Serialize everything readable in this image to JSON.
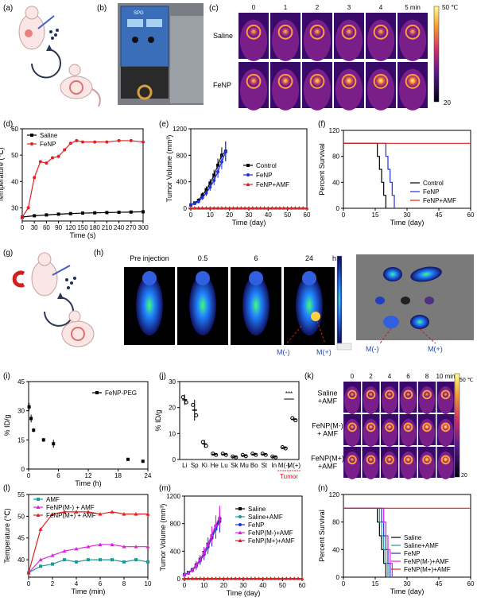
{
  "panel_labels": {
    "a": "(a)",
    "b": "(b)",
    "c": "(c)",
    "d": "(d)",
    "e": "(e)",
    "f": "(f)",
    "g": "(g)",
    "h": "(h)",
    "i": "(i)",
    "j": "(j)",
    "k": "(k)",
    "l": "(l)",
    "m": "(m)",
    "n": "(n)"
  },
  "colors": {
    "black": "#000000",
    "red": "#e02020",
    "blue": "#2030e0",
    "teal": "#1a9a9a",
    "magenta": "#e020e0",
    "green": "#30c030"
  },
  "panel_b": {
    "device_label": "SPG"
  },
  "panel_c": {
    "times": [
      "0",
      "1",
      "2",
      "3",
      "4",
      "5 min"
    ],
    "rows": [
      "Saline",
      "FeNP"
    ],
    "scale_max": "50 ℃",
    "scale_min": "20"
  },
  "panel_h": {
    "times": [
      "Pre injection",
      "0.5",
      "6",
      "24"
    ],
    "unit": "h",
    "marker_left": "M(-)",
    "marker_right": "M(+)"
  },
  "panel_k": {
    "times": [
      "0",
      "2",
      "4",
      "6",
      "8",
      "10 min"
    ],
    "rows": [
      "Saline\n+AMF",
      "FeNP(M-)\n+ AMF",
      "FeNP(M+)\n+AMF"
    ],
    "scale_max": "50 ℃",
    "scale_min": "20"
  },
  "chart_data": [
    {
      "id": "d",
      "type": "line",
      "xlabel": "Time (s)",
      "ylabel": "Temperature (℃)",
      "xlim": [
        0,
        300
      ],
      "ylim": [
        25,
        60
      ],
      "xticks": [
        0,
        30,
        60,
        90,
        120,
        150,
        180,
        210,
        240,
        270,
        300
      ],
      "yticks": [
        30,
        40,
        50,
        60
      ],
      "series": [
        {
          "name": "Saline",
          "color": "#000000",
          "marker": "square",
          "x": [
            0,
            30,
            60,
            90,
            120,
            150,
            180,
            210,
            240,
            270,
            300
          ],
          "y": [
            26.5,
            27,
            27.3,
            27.6,
            27.8,
            28,
            28.1,
            28.2,
            28.3,
            28.4,
            28.5
          ]
        },
        {
          "name": "FeNP",
          "color": "#e02020",
          "marker": "circle",
          "x": [
            0,
            15,
            30,
            45,
            60,
            75,
            90,
            105,
            120,
            135,
            150,
            180,
            210,
            240,
            270,
            300
          ],
          "y": [
            26.5,
            30,
            41.5,
            47.5,
            47,
            49,
            49.5,
            52,
            54.5,
            55.5,
            55,
            55,
            55,
            55.5,
            55.5,
            55
          ]
        }
      ]
    },
    {
      "id": "e",
      "type": "line",
      "xlabel": "Time (day)",
      "ylabel": "Tumor Volume (mm³)",
      "xlim": [
        0,
        60
      ],
      "ylim": [
        0,
        1200
      ],
      "xticks": [
        0,
        10,
        20,
        30,
        40,
        50,
        60
      ],
      "yticks": [
        0,
        400,
        800,
        1200
      ],
      "series": [
        {
          "name": "Control",
          "color": "#000000",
          "marker": "square",
          "x": [
            0,
            2,
            4,
            6,
            8,
            10,
            12,
            14,
            16,
            18
          ],
          "y": [
            50,
            80,
            120,
            200,
            280,
            380,
            500,
            650,
            800,
            860
          ],
          "err": [
            10,
            20,
            30,
            40,
            50,
            60,
            80,
            100,
            120,
            150
          ]
        },
        {
          "name": "FeNP",
          "color": "#2030e0",
          "marker": "circle",
          "x": [
            0,
            2,
            4,
            6,
            8,
            10,
            12,
            14,
            16,
            18
          ],
          "y": [
            50,
            70,
            100,
            160,
            230,
            320,
            420,
            550,
            700,
            850
          ],
          "err": [
            10,
            15,
            25,
            35,
            45,
            55,
            70,
            90,
            110,
            140
          ]
        },
        {
          "name": "FeNP+AMF",
          "color": "#e02020",
          "marker": "triangle",
          "x": [
            0,
            2,
            4,
            6,
            8,
            10,
            12,
            14,
            16,
            18,
            20,
            22,
            24,
            26,
            28,
            30,
            32,
            34,
            36,
            38,
            40,
            42,
            44,
            46,
            48,
            50,
            52,
            54,
            56,
            58,
            60
          ],
          "y": [
            5,
            5,
            5,
            5,
            5,
            5,
            5,
            5,
            5,
            5,
            5,
            5,
            5,
            5,
            5,
            5,
            5,
            5,
            5,
            5,
            5,
            5,
            5,
            5,
            5,
            5,
            5,
            5,
            5,
            5,
            5
          ]
        }
      ]
    },
    {
      "id": "f",
      "type": "line",
      "xlabel": "Time (day)",
      "ylabel": "Percent Survival",
      "xlim": [
        0,
        60
      ],
      "ylim": [
        0,
        120
      ],
      "xticks": [
        0,
        15,
        30,
        45,
        60
      ],
      "yticks": [
        0,
        40,
        80,
        120
      ],
      "series": [
        {
          "name": "Control",
          "color": "#000000",
          "step": true,
          "x": [
            0,
            16,
            16,
            17,
            17,
            18,
            18,
            19,
            19,
            20,
            20
          ],
          "y": [
            100,
            100,
            80,
            80,
            60,
            60,
            40,
            40,
            20,
            20,
            0
          ]
        },
        {
          "name": "FeNP",
          "color": "#2030e0",
          "step": true,
          "x": [
            0,
            20,
            20,
            21,
            21,
            22,
            22,
            23,
            23,
            24,
            24
          ],
          "y": [
            100,
            100,
            80,
            80,
            60,
            60,
            40,
            40,
            20,
            20,
            0
          ]
        },
        {
          "name": "FeNP+AMF",
          "color": "#e02020",
          "step": true,
          "x": [
            0,
            60
          ],
          "y": [
            100,
            100
          ]
        }
      ]
    },
    {
      "id": "i",
      "type": "scatter",
      "xlabel": "Time (h)",
      "ylabel": "% ID/g",
      "xlim": [
        0,
        24
      ],
      "ylim": [
        0,
        45
      ],
      "xticks": [
        0,
        6,
        12,
        18,
        24
      ],
      "yticks": [
        0,
        15,
        30,
        45
      ],
      "series": [
        {
          "name": "FeNP-PEG",
          "color": "#000000",
          "marker": "square",
          "x": [
            0.1,
            0.5,
            1,
            3,
            5,
            20,
            23
          ],
          "y": [
            32,
            26,
            20,
            15,
            13,
            5,
            4
          ],
          "err": [
            2,
            2,
            1,
            1,
            2,
            0.5,
            0.5
          ]
        }
      ]
    },
    {
      "id": "j",
      "type": "bar",
      "xlabel": "",
      "ylabel": "% ID/g",
      "ylim": [
        0,
        30
      ],
      "yticks": [
        0,
        10,
        20,
        30
      ],
      "categories": [
        "Li",
        "Sp",
        "Ki",
        "He",
        "Lu",
        "Sk",
        "Mu",
        "Bo",
        "St",
        "In",
        "M(-)",
        "M(+)"
      ],
      "values": [
        23,
        19,
        6,
        2,
        2,
        1,
        1.5,
        2,
        2,
        1,
        4.5,
        15.5
      ],
      "err": [
        2,
        4,
        1.5,
        0.5,
        0.5,
        0.3,
        0.5,
        0.5,
        0.5,
        0.3,
        0.5,
        0.8
      ],
      "annotation": "***",
      "group_label": "Tumor"
    },
    {
      "id": "l",
      "type": "line",
      "xlabel": "Time (min)",
      "ylabel": "Temperature (℃)",
      "xlim": [
        0,
        10
      ],
      "ylim": [
        36,
        55
      ],
      "xticks": [
        0,
        2,
        4,
        6,
        8,
        10
      ],
      "yticks": [
        40,
        45,
        50,
        55
      ],
      "series": [
        {
          "name": "AMF",
          "color": "#1a9a9a",
          "marker": "square",
          "x": [
            0,
            1,
            2,
            3,
            4,
            5,
            6,
            7,
            8,
            9,
            10
          ],
          "y": [
            37,
            38.5,
            39,
            40,
            39.5,
            40,
            40,
            40,
            39.5,
            40,
            39.5
          ]
        },
        {
          "name": "FeNP(M-) + AMF",
          "color": "#e020e0",
          "marker": "triangle",
          "x": [
            0,
            1,
            2,
            3,
            4,
            5,
            6,
            7,
            8,
            9,
            10
          ],
          "y": [
            37,
            40,
            41,
            42,
            42.5,
            43,
            43.5,
            43.5,
            43,
            43,
            43
          ]
        },
        {
          "name": "FeNP(M+) + AMF",
          "color": "#e02020",
          "marker": "triangle",
          "x": [
            0,
            1,
            2,
            3,
            4,
            5,
            6,
            7,
            8,
            9,
            10
          ],
          "y": [
            37,
            47,
            50.5,
            51,
            51,
            51,
            50.5,
            51,
            50.5,
            50.5,
            50.5
          ]
        }
      ]
    },
    {
      "id": "m",
      "type": "line",
      "xlabel": "Time (day)",
      "ylabel": "Tumor Volume (mm³)",
      "xlim": [
        0,
        60
      ],
      "ylim": [
        0,
        1200
      ],
      "xticks": [
        0,
        10,
        20,
        30,
        40,
        50,
        60
      ],
      "yticks": [
        0,
        400,
        800,
        1200
      ],
      "series": [
        {
          "name": "Saline",
          "color": "#000000",
          "marker": "square",
          "x": [
            0,
            2,
            4,
            6,
            8,
            10,
            12,
            14,
            16,
            18
          ],
          "y": [
            60,
            90,
            130,
            200,
            280,
            380,
            500,
            620,
            760,
            870
          ],
          "err": [
            10,
            20,
            30,
            50,
            60,
            80,
            100,
            120,
            140,
            160
          ]
        },
        {
          "name": "Saline+AMF",
          "color": "#1a9a9a",
          "marker": "circle",
          "x": [
            0,
            2,
            4,
            6,
            8,
            10,
            12,
            14,
            16,
            18
          ],
          "y": [
            60,
            85,
            125,
            190,
            270,
            370,
            480,
            600,
            740,
            850
          ],
          "err": [
            10,
            20,
            30,
            50,
            60,
            80,
            100,
            120,
            140,
            160
          ]
        },
        {
          "name": "FeNP",
          "color": "#2030e0",
          "marker": "circle",
          "x": [
            0,
            2,
            4,
            6,
            8,
            10,
            12,
            14,
            16,
            18
          ],
          "y": [
            60,
            80,
            120,
            180,
            260,
            350,
            460,
            590,
            720,
            830
          ],
          "err": [
            10,
            20,
            30,
            50,
            60,
            80,
            100,
            120,
            140,
            160
          ]
        },
        {
          "name": "FeNP(M-)+AMF",
          "color": "#e020e0",
          "marker": "triangle",
          "x": [
            0,
            2,
            4,
            6,
            8,
            10,
            12,
            14,
            16,
            18
          ],
          "y": [
            60,
            85,
            125,
            190,
            280,
            380,
            500,
            640,
            780,
            900
          ],
          "err": [
            10,
            20,
            30,
            50,
            60,
            80,
            100,
            120,
            140,
            160
          ]
        },
        {
          "name": "FeNP(M+)+AMF",
          "color": "#e02020",
          "marker": "triangle",
          "x": [
            0,
            2,
            4,
            6,
            8,
            10,
            12,
            14,
            16,
            18,
            20,
            22,
            24,
            26,
            28,
            30,
            32,
            34,
            36,
            38,
            40,
            42,
            44,
            46,
            48,
            50,
            52,
            54,
            56,
            58,
            60
          ],
          "y": [
            5,
            5,
            5,
            5,
            5,
            5,
            5,
            5,
            5,
            5,
            5,
            5,
            5,
            5,
            5,
            5,
            5,
            5,
            5,
            5,
            5,
            5,
            5,
            5,
            5,
            5,
            5,
            5,
            5,
            5,
            5
          ]
        }
      ]
    },
    {
      "id": "n",
      "type": "line",
      "xlabel": "Time (day)",
      "ylabel": "Percent Survival",
      "xlim": [
        0,
        60
      ],
      "ylim": [
        0,
        120
      ],
      "xticks": [
        0,
        15,
        30,
        45,
        60
      ],
      "yticks": [
        0,
        40,
        80,
        120
      ],
      "series": [
        {
          "name": "Saline",
          "color": "#000000",
          "step": true,
          "x": [
            0,
            16,
            16,
            17,
            17,
            18,
            18,
            19,
            19,
            20,
            20
          ],
          "y": [
            100,
            100,
            80,
            80,
            60,
            60,
            40,
            40,
            20,
            20,
            0
          ]
        },
        {
          "name": "Saline+AMF",
          "color": "#1a9a9a",
          "step": true,
          "x": [
            0,
            17,
            17,
            18,
            18,
            19,
            19,
            20,
            20,
            21,
            21
          ],
          "y": [
            100,
            100,
            80,
            80,
            60,
            60,
            40,
            40,
            20,
            20,
            0
          ]
        },
        {
          "name": "FeNP",
          "color": "#2030e0",
          "step": true,
          "x": [
            0,
            18,
            18,
            19,
            19,
            20,
            20,
            21,
            21,
            22,
            22
          ],
          "y": [
            100,
            100,
            80,
            80,
            60,
            60,
            40,
            40,
            20,
            20,
            0
          ]
        },
        {
          "name": "FeNP(M-)+AMF",
          "color": "#e020e0",
          "step": true,
          "x": [
            0,
            19,
            19,
            20,
            20,
            21,
            21,
            22,
            22,
            23,
            23
          ],
          "y": [
            100,
            100,
            80,
            80,
            60,
            60,
            40,
            40,
            20,
            20,
            0
          ]
        },
        {
          "name": "FeNP(M+)+AMF",
          "color": "#e02020",
          "step": true,
          "x": [
            0,
            60
          ],
          "y": [
            100,
            100
          ]
        }
      ]
    }
  ]
}
